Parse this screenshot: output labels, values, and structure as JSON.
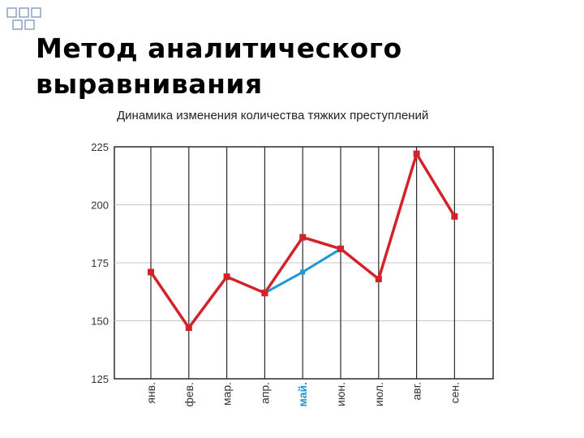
{
  "slide": {
    "title_line1": "Метод аналитического",
    "title_line2": "выравнивания"
  },
  "colors": {
    "raw_series": "#d3232a",
    "aligned_series": "#1f97d6",
    "highlight_label": "#1f97d6",
    "deco_square": "#8aa3c4"
  },
  "chart_data": {
    "type": "line",
    "title": "Динамика изменения количества тяжких преступлений",
    "categories": [
      "янв.",
      "фев.",
      "мар.",
      "апр.",
      "май.",
      "июн.",
      "июл.",
      "авг.",
      "сен."
    ],
    "highlight_category": "май.",
    "series": [
      {
        "values": [
          171,
          147,
          169,
          162,
          186,
          181,
          168,
          222,
          195
        ]
      },
      {
        "values": [
          null,
          null,
          null,
          162,
          171,
          181,
          null,
          null,
          null
        ]
      }
    ],
    "yticks": [
      125,
      150,
      175,
      200,
      225
    ],
    "ylim": [
      125,
      225
    ],
    "grid": true
  }
}
